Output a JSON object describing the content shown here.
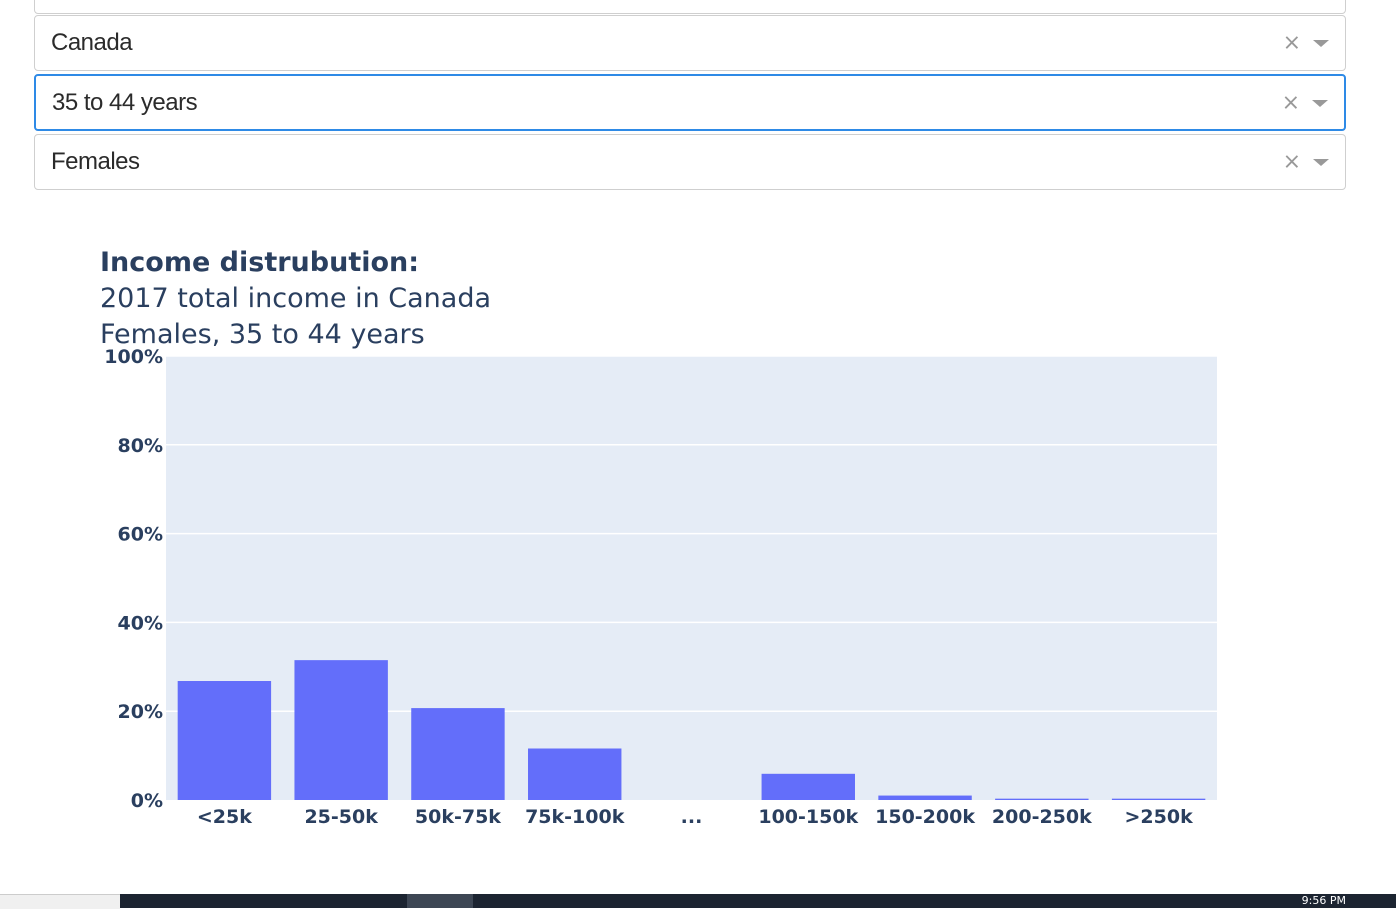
{
  "filters": {
    "country": "Canada",
    "age_group": "35 to 44 years",
    "sex": "Females",
    "clear_glyph": "×"
  },
  "chart_data": {
    "type": "bar",
    "title": "Income distrubution:",
    "subtitle_line1": "2017 total income in Canada",
    "subtitle_line2": "Females, 35 to 44 years",
    "categories": [
      "<25k",
      "25-50k",
      "50k-75k",
      "75k-100k",
      "...",
      "100-150k",
      "150-200k",
      "200-250k",
      ">250k"
    ],
    "values": [
      26.8,
      31.5,
      20.7,
      11.6,
      0,
      5.9,
      1.0,
      0.3,
      0.3
    ],
    "ylim": [
      0,
      100
    ],
    "yticks": [
      0,
      20,
      40,
      60,
      80,
      100
    ],
    "ytick_labels": [
      "0%",
      "20%",
      "40%",
      "60%",
      "80%",
      "100%"
    ],
    "grid": true,
    "bar_color": "#636efa",
    "plot_bg": "#e5ecf6",
    "text_color": "#2a3f5f"
  },
  "taskbar": {
    "clock": "9:56 PM"
  }
}
